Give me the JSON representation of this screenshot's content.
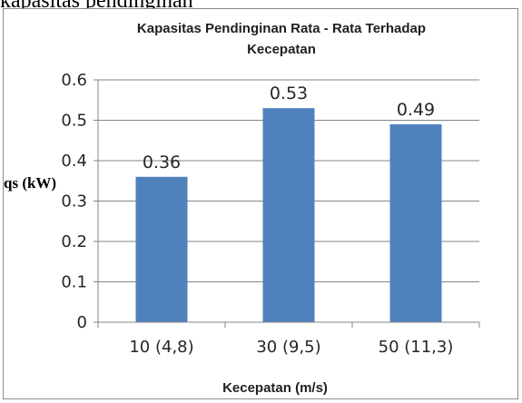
{
  "page": {
    "caption": "kapasitas pendinginan"
  },
  "chart_data": {
    "type": "bar",
    "title_lines": [
      "Kapasitas Pendinginan Rata - Rata Terhadap",
      "Kecepatan"
    ],
    "xlabel": "Kecepatan (m/s)",
    "ylabel": "qs (kW)",
    "categories": [
      "10 (4,8)",
      "30 (9,5)",
      "50 (11,3)"
    ],
    "values": [
      0.36,
      0.53,
      0.49
    ],
    "data_labels": [
      "0.36",
      "0.53",
      "0.49"
    ],
    "ylim": [
      0,
      0.6
    ],
    "yticks": [
      "0",
      "0.1",
      "0.2",
      "0.3",
      "0.4",
      "0.5",
      "0.6"
    ],
    "grid": true,
    "legend": "none",
    "colors": {
      "bar": "#4f81bd",
      "grid": "#858585",
      "axis": "#858585"
    }
  }
}
